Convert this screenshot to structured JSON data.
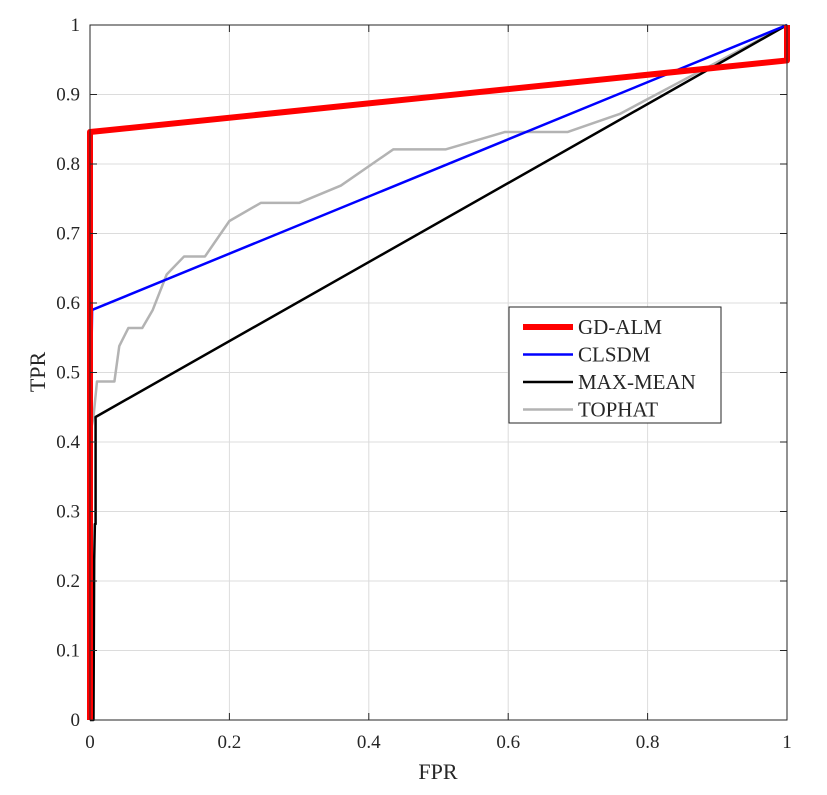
{
  "chart_data": {
    "type": "line",
    "title": "",
    "xlabel": "FPR",
    "ylabel": "TPR",
    "xlim": [
      0,
      1
    ],
    "ylim": [
      0,
      1
    ],
    "grid": true,
    "legend_location": "center-right",
    "xticks": [
      0,
      0.2,
      0.4,
      0.6,
      0.8,
      1
    ],
    "xtick_labels": [
      "0",
      "0.2",
      "0.4",
      "0.6",
      "0.8",
      "1"
    ],
    "yticks": [
      0,
      0.1,
      0.2,
      0.3,
      0.4,
      0.5,
      0.6,
      0.7,
      0.8,
      0.9,
      1
    ],
    "ytick_labels": [
      "0",
      "0.1",
      "0.2",
      "0.3",
      "0.4",
      "0.5",
      "0.6",
      "0.7",
      "0.8",
      "0.9",
      "1"
    ],
    "series": [
      {
        "name": "GD-ALM",
        "color": "#ff0000",
        "points": [
          [
            0,
            0
          ],
          [
            0,
            0.846
          ],
          [
            1.0,
            0.949
          ],
          [
            1.0,
            1.0
          ]
        ]
      },
      {
        "name": "CLSDM",
        "color": "#0000ff",
        "points": [
          [
            0,
            0
          ],
          [
            0,
            0.385
          ],
          [
            0.003,
            0.59
          ],
          [
            1.0,
            1.0
          ]
        ]
      },
      {
        "name": "MAX-MEAN",
        "color": "#000000",
        "points": [
          [
            0,
            0
          ],
          [
            0.005,
            0.0
          ],
          [
            0.006,
            0.23
          ],
          [
            0.007,
            0.282
          ],
          [
            0.008,
            0.282
          ],
          [
            0.008,
            0.436
          ],
          [
            1.0,
            1.0
          ]
        ]
      },
      {
        "name": "TOPHAT",
        "color": "#b3b3b3",
        "points": [
          [
            0,
            0
          ],
          [
            0,
            0.41
          ],
          [
            0.005,
            0.436
          ],
          [
            0.01,
            0.487
          ],
          [
            0.035,
            0.487
          ],
          [
            0.042,
            0.538
          ],
          [
            0.055,
            0.564
          ],
          [
            0.075,
            0.564
          ],
          [
            0.09,
            0.59
          ],
          [
            0.11,
            0.641
          ],
          [
            0.135,
            0.667
          ],
          [
            0.165,
            0.667
          ],
          [
            0.2,
            0.718
          ],
          [
            0.245,
            0.744
          ],
          [
            0.3,
            0.744
          ],
          [
            0.36,
            0.769
          ],
          [
            0.435,
            0.821
          ],
          [
            0.51,
            0.821
          ],
          [
            0.595,
            0.846
          ],
          [
            0.685,
            0.846
          ],
          [
            0.76,
            0.872
          ],
          [
            1.0,
            1.0
          ]
        ]
      }
    ]
  }
}
